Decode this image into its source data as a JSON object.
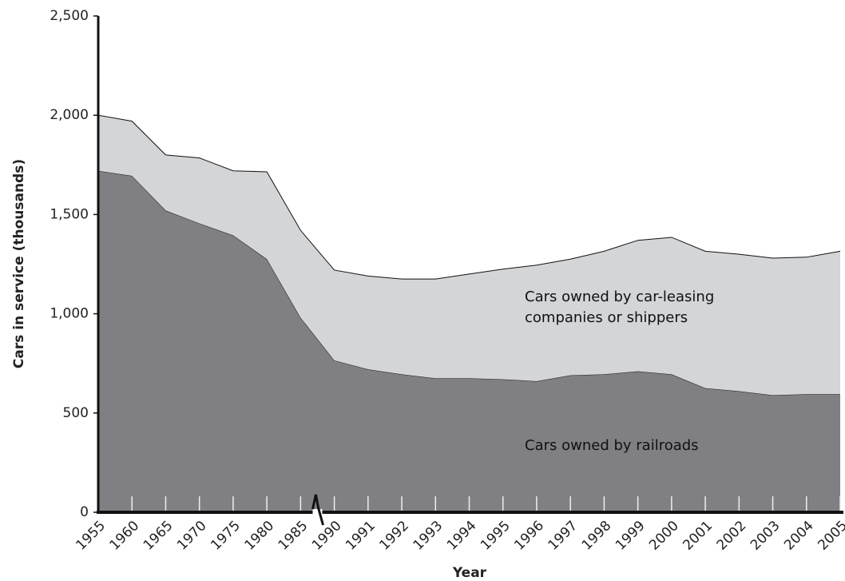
{
  "chart_data": {
    "type": "area",
    "stacked": true,
    "x_label": "Year",
    "y_label": "Cars in service (thousands)",
    "categories": [
      "1955",
      "1960",
      "1965",
      "1970",
      "1975",
      "1980",
      "1985",
      "1990",
      "1991",
      "1992",
      "1993",
      "1994",
      "1995",
      "1996",
      "1997",
      "1998",
      "1999",
      "2000",
      "2001",
      "2002",
      "2003",
      "2004",
      "2005"
    ],
    "series": [
      {
        "name": "Cars owned by railroads",
        "color": "#808084",
        "values": [
          1720,
          1695,
          1520,
          1455,
          1395,
          1275,
          980,
          765,
          720,
          695,
          675,
          675,
          670,
          660,
          690,
          695,
          710,
          695,
          625,
          610,
          590,
          595,
          595
        ]
      },
      {
        "name": "Cars owned by car-leasing companies or shippers",
        "color": "#d4d5d7",
        "values": [
          280,
          275,
          280,
          330,
          325,
          440,
          440,
          455,
          470,
          480,
          500,
          525,
          555,
          585,
          585,
          620,
          660,
          690,
          690,
          690,
          690,
          690,
          720
        ]
      }
    ],
    "ylim": [
      0,
      2500
    ],
    "yticks": [
      0,
      500,
      {
        "value": 1000,
        "label": "1,000"
      },
      {
        "value": 1500,
        "label": "1,500"
      },
      {
        "value": 2000,
        "label": "2,000"
      },
      {
        "value": 2500,
        "label": "2,500"
      }
    ],
    "grid": false
  }
}
